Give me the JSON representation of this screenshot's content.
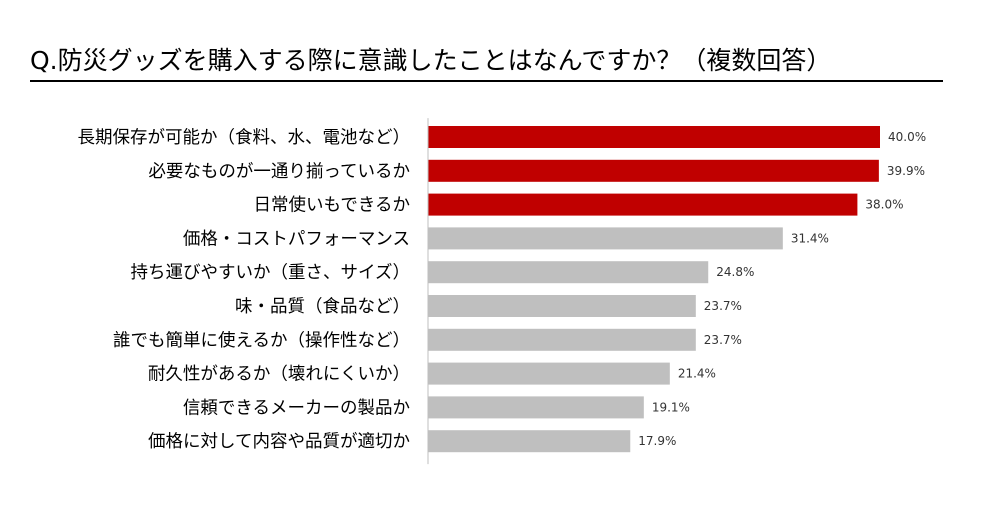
{
  "title": "Q.防災グッズを購入する際に意識したことはなんですか？（複数回答）",
  "colors": {
    "highlight": "#c00000",
    "default": "#bfbfbf",
    "axis": "#bfbfbf",
    "text": "#000000"
  },
  "chart_data": {
    "type": "bar",
    "orientation": "horizontal",
    "title": "Q.防災グッズを購入する際に意識したことはなんですか？（複数回答）",
    "xlabel": "",
    "ylabel": "",
    "unit": "%",
    "xlim": [
      0,
      44
    ],
    "grid": false,
    "legend": "none",
    "categories": [
      "長期保存が可能か（食料、水、電池など）",
      "必要なものが一通り揃っているか",
      "日常使いもできるか",
      "価格・コストパフォーマンス",
      "持ち運びやすいか（重さ、サイズ）",
      "味・品質（食品など）",
      "誰でも簡単に使えるか（操作性など）",
      "耐久性があるか（壊れにくいか）",
      "信頼できるメーカーの製品か",
      "価格に対して内容や品質が適切か"
    ],
    "values": [
      40.0,
      39.9,
      38.0,
      31.4,
      24.8,
      23.7,
      23.7,
      21.4,
      19.1,
      17.9
    ],
    "value_labels": [
      "40.0%",
      "39.9%",
      "38.0%",
      "31.4%",
      "24.8%",
      "23.7%",
      "23.7%",
      "21.4%",
      "19.1%",
      "17.9%"
    ],
    "highlighted": [
      true,
      true,
      true,
      false,
      false,
      false,
      false,
      false,
      false,
      false
    ]
  }
}
